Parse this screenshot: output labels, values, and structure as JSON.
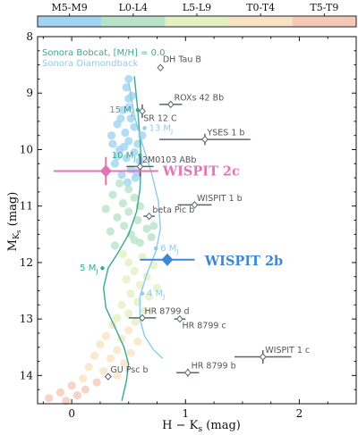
{
  "chart_data": {
    "type": "scatter",
    "xlabel": "H − K",
    "xlabel_sub": "s",
    "xlabel_unit": " (mag)",
    "ylabel": "M",
    "ylabel_sub": "K",
    "ylabel_subsub": "s",
    "ylabel_unit": " (mag)",
    "xlim": [
      -0.3,
      2.5
    ],
    "ylim": [
      14.5,
      8.0
    ],
    "x_ticks": [
      "0",
      "1",
      "2"
    ],
    "x_tick_values": [
      0,
      1,
      2
    ],
    "y_ticks": [
      "8",
      "9",
      "10",
      "11",
      "12",
      "13",
      "14"
    ],
    "y_tick_values": [
      8,
      9,
      10,
      11,
      12,
      13,
      14
    ],
    "colorbar": {
      "labels": [
        "M5-M9",
        "L0-L4",
        "L5-L9",
        "T0-T4",
        "T5-T9"
      ],
      "colors": [
        "#9fd4f2",
        "#b9e3c8",
        "#e4f0c2",
        "#f7e3c3",
        "#f5c9b8"
      ]
    },
    "legend": [
      {
        "label": "Sonora Bobcat, [M/H] = 0.0",
        "color": "#3aaa8e"
      },
      {
        "label": "Sonora Diamondback",
        "color": "#8ccbea"
      }
    ],
    "models": {
      "bobcat": {
        "color": "#3aaa8e",
        "x": [
          0.55,
          0.58,
          0.6,
          0.61,
          0.6,
          0.57,
          0.5,
          0.4,
          0.32,
          0.28,
          0.3,
          0.38,
          0.46,
          0.5,
          0.48,
          0.44
        ],
        "y": [
          8.7,
          9.3,
          9.8,
          10.2,
          10.7,
          11.1,
          11.5,
          11.85,
          12.1,
          12.45,
          12.8,
          13.15,
          13.5,
          13.8,
          14.1,
          14.45
        ]
      },
      "diamondback": {
        "color": "#8ccbea",
        "x": [
          0.5,
          0.55,
          0.62,
          0.7,
          0.76,
          0.78,
          0.74,
          0.66,
          0.6,
          0.6,
          0.64,
          0.72,
          0.8
        ],
        "y": [
          8.8,
          9.4,
          9.9,
          10.4,
          10.9,
          11.4,
          11.8,
          12.2,
          12.6,
          13.0,
          13.3,
          13.55,
          13.7
        ]
      }
    },
    "mass_labels": [
      {
        "label": "15 M",
        "sub": "J",
        "x": 0.58,
        "y": 9.3,
        "color": "#3aaa8e",
        "side": "left"
      },
      {
        "label": "13 M",
        "sub": "J",
        "x": 0.64,
        "y": 9.62,
        "color": "#8ccbea",
        "side": "right"
      },
      {
        "label": "10 M",
        "sub": "J",
        "x": 0.6,
        "y": 10.1,
        "color": "#3aaa8e",
        "side": "left"
      },
      {
        "label": "6 M",
        "sub": "J",
        "x": 0.74,
        "y": 11.75,
        "color": "#8ccbea",
        "side": "right"
      },
      {
        "label": "5 M",
        "sub": "J",
        "x": 0.27,
        "y": 12.1,
        "color": "#3aaa8e",
        "side": "left"
      },
      {
        "label": "4 M",
        "sub": "J",
        "x": 0.62,
        "y": 12.55,
        "color": "#8ccbea",
        "side": "right"
      }
    ],
    "companions": [
      {
        "name": "DH Tau B",
        "x": 0.78,
        "y": 8.55,
        "xerr": 0.02,
        "yerr": 0.05,
        "lx": 0.8,
        "ly": 8.4
      },
      {
        "name": "ROXs 42 Bb",
        "x": 0.87,
        "y": 9.2,
        "xerr": 0.1,
        "yerr": 0.05,
        "lx": 0.9,
        "ly": 9.08
      },
      {
        "name": "SR 12 C",
        "x": 0.62,
        "y": 9.32,
        "xerr": 0.02,
        "yerr": 0.12,
        "lx": 0.63,
        "ly": 9.45
      },
      {
        "name": "YSES 1 b",
        "x": 1.17,
        "y": 9.82,
        "xerr": 0.4,
        "yerr": 0.1,
        "lx": 1.19,
        "ly": 9.7
      },
      {
        "name": "2M0103 ABb",
        "x": 0.6,
        "y": 10.3,
        "xerr": 0.12,
        "yerr": 0.18,
        "lx": 0.62,
        "ly": 10.18
      },
      {
        "name": "WISPIT 1 b",
        "x": 1.08,
        "y": 10.98,
        "xerr": 0.15,
        "yerr": 0.05,
        "lx": 1.1,
        "ly": 10.86
      },
      {
        "name": "beta Pic b",
        "x": 0.68,
        "y": 11.18,
        "xerr": 0.05,
        "yerr": 0.05,
        "lx": 0.71,
        "ly": 11.07
      },
      {
        "name": "HR 8799 d",
        "x": 0.62,
        "y": 12.98,
        "xerr": 0.12,
        "yerr": 0.05,
        "lx": 0.64,
        "ly": 12.86
      },
      {
        "name": "HR 8799 c",
        "x": 0.95,
        "y": 13.0,
        "xerr": 0.05,
        "yerr": 0.05,
        "lx": 0.97,
        "ly": 13.12
      },
      {
        "name": "WISPIT 1 c",
        "x": 1.68,
        "y": 13.67,
        "xerr": 0.25,
        "yerr": 0.12,
        "lx": 1.7,
        "ly": 13.55
      },
      {
        "name": "HR 8799 b",
        "x": 1.02,
        "y": 13.95,
        "xerr": 0.1,
        "yerr": 0.07,
        "lx": 1.05,
        "ly": 13.83
      },
      {
        "name": "GU Psc b",
        "x": 0.32,
        "y": 14.02,
        "xerr": 0.03,
        "yerr": 0.05,
        "lx": 0.34,
        "ly": 13.9
      }
    ],
    "highlights": [
      {
        "name": "WISPIT 2c",
        "x": 0.3,
        "y": 10.38,
        "xerr": 0.46,
        "yerr": 0.25,
        "color": "#e075b8",
        "lx": 0.8,
        "ly": 10.38
      },
      {
        "name": "WISPIT 2b",
        "x": 0.84,
        "y": 11.95,
        "xerr": 0.24,
        "yerr": 0.1,
        "color": "#3f86d6",
        "lx": 1.17,
        "ly": 11.97
      }
    ],
    "field_points": [
      [
        0.48,
        8.9,
        0
      ],
      [
        0.5,
        9.1,
        0
      ],
      [
        0.45,
        9.3,
        0
      ],
      [
        0.52,
        9.45,
        0
      ],
      [
        0.4,
        9.55,
        0
      ],
      [
        0.55,
        9.6,
        0
      ],
      [
        0.47,
        9.7,
        0
      ],
      [
        0.35,
        9.75,
        0
      ],
      [
        0.5,
        9.85,
        0
      ],
      [
        0.58,
        9.9,
        0
      ],
      [
        0.42,
        10.0,
        0
      ],
      [
        0.55,
        10.05,
        0
      ],
      [
        0.48,
        10.15,
        0
      ],
      [
        0.6,
        10.2,
        0
      ],
      [
        0.38,
        10.25,
        0
      ],
      [
        0.52,
        10.35,
        0
      ],
      [
        0.44,
        10.45,
        0
      ],
      [
        0.56,
        10.5,
        0
      ],
      [
        0.5,
        9.25,
        0
      ],
      [
        0.43,
        9.45,
        0
      ],
      [
        0.53,
        9.05,
        0
      ],
      [
        0.46,
        9.95,
        0
      ],
      [
        0.4,
        10.12,
        0
      ],
      [
        0.57,
        10.4,
        0
      ],
      [
        0.49,
        10.58,
        0
      ],
      [
        0.5,
        8.75,
        0
      ],
      [
        0.36,
        9.9,
        0
      ],
      [
        0.62,
        9.75,
        0
      ],
      [
        0.42,
        10.6,
        1
      ],
      [
        0.5,
        10.7,
        1
      ],
      [
        0.36,
        10.8,
        1
      ],
      [
        0.55,
        10.85,
        1
      ],
      [
        0.45,
        10.95,
        1
      ],
      [
        0.6,
        11.0,
        1
      ],
      [
        0.3,
        11.05,
        1
      ],
      [
        0.5,
        11.1,
        1
      ],
      [
        0.4,
        11.2,
        1
      ],
      [
        0.58,
        11.25,
        1
      ],
      [
        0.46,
        11.35,
        1
      ],
      [
        0.66,
        11.4,
        1
      ],
      [
        0.34,
        11.45,
        1
      ],
      [
        0.52,
        11.5,
        1
      ],
      [
        0.7,
        11.55,
        1
      ],
      [
        0.6,
        11.65,
        1
      ],
      [
        0.38,
        11.7,
        1
      ],
      [
        0.72,
        11.35,
        1
      ],
      [
        0.55,
        11.6,
        1
      ],
      [
        0.45,
        11.85,
        2
      ],
      [
        0.62,
        11.9,
        2
      ],
      [
        0.5,
        12.0,
        2
      ],
      [
        0.72,
        12.05,
        2
      ],
      [
        0.55,
        12.15,
        2
      ],
      [
        0.66,
        12.25,
        2
      ],
      [
        0.48,
        12.3,
        2
      ],
      [
        0.6,
        12.4,
        2
      ],
      [
        0.75,
        12.45,
        2
      ],
      [
        0.52,
        12.55,
        2
      ],
      [
        0.68,
        12.6,
        2
      ],
      [
        0.58,
        12.7,
        2
      ],
      [
        0.44,
        12.75,
        2
      ],
      [
        0.64,
        12.85,
        2
      ],
      [
        0.5,
        12.9,
        2
      ],
      [
        0.4,
        12.98,
        2
      ],
      [
        0.56,
        13.05,
        2
      ],
      [
        0.36,
        13.1,
        3
      ],
      [
        0.5,
        13.2,
        3
      ],
      [
        0.3,
        13.3,
        3
      ],
      [
        0.44,
        13.35,
        3
      ],
      [
        0.58,
        13.4,
        3
      ],
      [
        0.25,
        13.45,
        3
      ],
      [
        0.4,
        13.55,
        3
      ],
      [
        0.52,
        13.6,
        3
      ],
      [
        0.2,
        13.65,
        3
      ],
      [
        0.34,
        13.7,
        3
      ],
      [
        0.46,
        13.78,
        3
      ],
      [
        0.15,
        13.85,
        3
      ],
      [
        0.28,
        13.92,
        3
      ],
      [
        0.4,
        14.0,
        3
      ],
      [
        0.1,
        14.05,
        3
      ],
      [
        0.22,
        14.12,
        4
      ],
      [
        0.0,
        14.18,
        4
      ],
      [
        0.12,
        14.25,
        4
      ],
      [
        -0.1,
        14.3,
        4
      ],
      [
        0.05,
        14.35,
        4
      ],
      [
        -0.2,
        14.4,
        4
      ],
      [
        -0.05,
        14.45,
        4
      ]
    ]
  }
}
